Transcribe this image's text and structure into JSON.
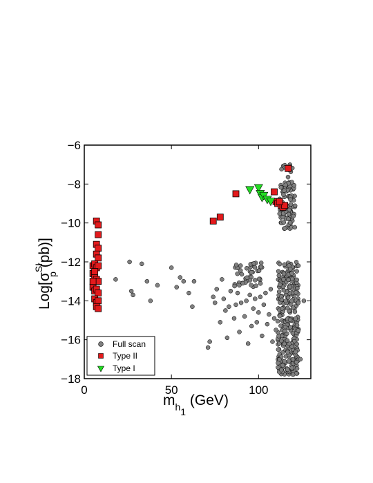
{
  "chart_data": {
    "type": "scatter",
    "xlim": [
      0,
      130
    ],
    "ylim": [
      -18,
      -6
    ],
    "xticks": [
      0,
      50,
      100
    ],
    "yticks": [
      -18,
      -16,
      -14,
      -12,
      -10,
      -8,
      -6
    ],
    "xticklabels": [
      "0",
      "50",
      "100"
    ],
    "yticklabels": [
      "−18",
      "−16",
      "−14",
      "−12",
      "−10",
      "−8",
      "−6"
    ],
    "xlabel": {
      "main": "m",
      "sub1": "h",
      "sub2": "1",
      "unit": " (GeV)"
    },
    "ylabel": {
      "main": "Log[σ",
      "sup": "SI",
      "sub": "p",
      "unit": " (pb)]"
    },
    "legend_position": "bottom-left",
    "grid": false,
    "series": [
      {
        "name": "Full scan",
        "marker": "circle",
        "color": "#808080",
        "clusters": [
          {
            "xmin": 112,
            "xmax": 121,
            "ymin": -10.3,
            "ymax": -7.9,
            "n": 110
          },
          {
            "xmin": 113,
            "xmax": 120,
            "ymin": -7.7,
            "ymax": -7.0,
            "n": 10
          },
          {
            "xmin": 111,
            "xmax": 123,
            "ymin": -17.8,
            "ymax": -12.0,
            "n": 300
          },
          {
            "xmin": 86,
            "xmax": 102,
            "ymin": -13.3,
            "ymax": -12.0,
            "n": 45
          }
        ],
        "points": [
          [
            18,
            -12.9
          ],
          [
            26,
            -12.0
          ],
          [
            27,
            -13.5
          ],
          [
            28,
            -13.7
          ],
          [
            33,
            -12.1
          ],
          [
            36,
            -13.0
          ],
          [
            38,
            -14.0
          ],
          [
            42,
            -13.2
          ],
          [
            50,
            -12.3
          ],
          [
            53,
            -13.3
          ],
          [
            55,
            -12.8
          ],
          [
            57,
            -13.0
          ],
          [
            60,
            -13.6
          ],
          [
            62,
            -14.3
          ],
          [
            63,
            -13.0
          ],
          [
            71,
            -16.4
          ],
          [
            72,
            -16.1
          ],
          [
            74,
            -13.8
          ],
          [
            75,
            -14.1
          ],
          [
            76,
            -13.4
          ],
          [
            78,
            -15.1
          ],
          [
            79,
            -12.9
          ],
          [
            80,
            -13.9
          ],
          [
            81,
            -14.5
          ],
          [
            82,
            -15.9
          ],
          [
            83,
            -14.3
          ],
          [
            84,
            -13.5
          ],
          [
            86,
            -14.9
          ],
          [
            87,
            -14.2
          ],
          [
            88,
            -13.6
          ],
          [
            89,
            -15.6
          ],
          [
            90,
            -14.1
          ],
          [
            91,
            -13.1
          ],
          [
            92,
            -14.8
          ],
          [
            93,
            -14.0
          ],
          [
            94,
            -16.2
          ],
          [
            95,
            -13.7
          ],
          [
            96,
            -15.3
          ],
          [
            97,
            -14.4
          ],
          [
            98,
            -13.9
          ],
          [
            99,
            -15.1
          ],
          [
            100,
            -14.6
          ],
          [
            101,
            -13.8
          ],
          [
            102,
            -15.8
          ],
          [
            103,
            -14.2
          ],
          [
            104,
            -13.6
          ],
          [
            105,
            -15.2
          ],
          [
            106,
            -14.7
          ],
          [
            107,
            -13.4
          ],
          [
            108,
            -16.1
          ],
          [
            109,
            -14.9
          ],
          [
            110,
            -15.5
          ],
          [
            126,
            -14.0
          ],
          [
            124,
            -17.0
          ]
        ]
      },
      {
        "name": "Type II",
        "marker": "square",
        "color": "#e31a1c",
        "points": [
          [
            7,
            -9.9
          ],
          [
            8,
            -10.1
          ],
          [
            8,
            -10.6
          ],
          [
            7,
            -11.1
          ],
          [
            8,
            -11.3
          ],
          [
            7,
            -11.6
          ],
          [
            8,
            -11.8
          ],
          [
            5,
            -12.2
          ],
          [
            6,
            -12.1
          ],
          [
            7,
            -12.3
          ],
          [
            8,
            -12.2
          ],
          [
            5,
            -12.6
          ],
          [
            6,
            -12.8
          ],
          [
            7,
            -12.9
          ],
          [
            8,
            -13.0
          ],
          [
            5,
            -13.3
          ],
          [
            6,
            -13.5
          ],
          [
            7,
            -13.4
          ],
          [
            8,
            -13.6
          ],
          [
            6,
            -13.9
          ],
          [
            7,
            -14.1
          ],
          [
            8,
            -14.0
          ],
          [
            7,
            -14.3
          ],
          [
            8,
            -14.4
          ],
          [
            6,
            -12.5
          ],
          [
            5,
            -13.0
          ],
          [
            74,
            -9.9
          ],
          [
            78,
            -9.7
          ],
          [
            87,
            -8.5
          ],
          [
            109,
            -8.4
          ],
          [
            110,
            -8.9
          ],
          [
            111,
            -9.0
          ],
          [
            113,
            -9.1
          ],
          [
            114,
            -9.2
          ],
          [
            115,
            -9.1
          ],
          [
            117,
            -7.2
          ],
          [
            112,
            -8.9
          ]
        ]
      },
      {
        "name": "Type I",
        "marker": "triangle-down",
        "color": "#22dd22",
        "points": [
          [
            95,
            -8.3
          ],
          [
            100,
            -8.2
          ],
          [
            101,
            -8.5
          ],
          [
            102,
            -8.7
          ],
          [
            103,
            -8.6
          ],
          [
            105,
            -8.8
          ],
          [
            107,
            -8.9
          ]
        ]
      }
    ]
  }
}
